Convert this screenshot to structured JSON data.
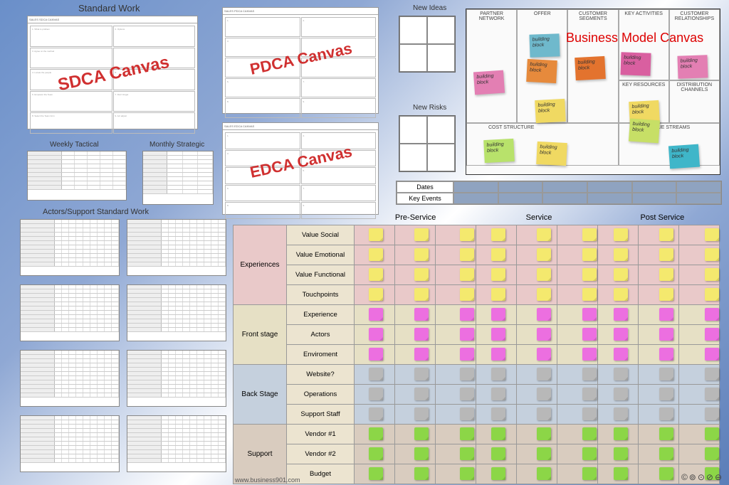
{
  "titles": {
    "standard_work": "Standard Work",
    "weekly_tactical": "Weekly Tactical",
    "monthly_strategic": "Monthly Strategic",
    "actors_support": "Actors/Support Standard Work",
    "new_ideas": "New Ideas",
    "new_risks": "New Risks",
    "bmc": "Business Model Canvas"
  },
  "canvases": {
    "sdca": "SDCA Canvas",
    "pdca": "PDCA Canvas",
    "edca": "EDCA Canvas"
  },
  "bmc": {
    "headers": [
      "PARTNER NETWORK",
      "KEY ACTIVITIES",
      "OFFER",
      "CUSTOMER RELATIONSHIPS",
      "CUSTOMER SEGMENTS",
      "KEY RESOURCES",
      "DISTRIBUTION CHANNELS",
      "COST STRUCTURE",
      "REVENUE STREAMS"
    ],
    "sticky_text": "building block",
    "colors": {
      "blue": "#6fb9cc",
      "orange": "#e68a3c",
      "orange2": "#e3732e",
      "pink": "#d95fa0",
      "pink2": "#e37fb3",
      "yellow": "#f0d962",
      "green": "#c7df66",
      "teal": "#3fb6c9",
      "lime": "#b8e26b"
    }
  },
  "kvbar": {
    "rows": [
      "Dates",
      "Key Events"
    ]
  },
  "service_matrix": {
    "phase_headers": [
      "Pre-Service",
      "Service",
      "Post Service"
    ],
    "sections": [
      {
        "name": "Experiences",
        "bg": "#e9c9c9",
        "rows": [
          {
            "label": "Value Social",
            "color": "#f4e96e"
          },
          {
            "label": "Value Emotional",
            "color": "#f4e96e"
          },
          {
            "label": "Value Functional",
            "color": "#f4e96e"
          },
          {
            "label": "Touchpoints",
            "color": "#f4e96e"
          }
        ]
      },
      {
        "name": "Front stage",
        "bg": "#e6e0c5",
        "rows": [
          {
            "label": "Experience",
            "color": "#ec6fe0"
          },
          {
            "label": "Actors",
            "color": "#ec6fe0"
          },
          {
            "label": "Enviroment",
            "color": "#ec6fe0"
          }
        ]
      },
      {
        "name": "Back Stage",
        "bg": "#c5d0dd",
        "rows": [
          {
            "label": "Website?",
            "color": "#b8b8b8"
          },
          {
            "label": "Operations",
            "color": "#b8b8b8"
          },
          {
            "label": "Support Staff",
            "color": "#b8b8b8"
          }
        ]
      },
      {
        "name": "Support",
        "bg": "#d9ccbf",
        "rows": [
          {
            "label": "Vendor #1",
            "color": "#8cd647"
          },
          {
            "label": "Vendor #2",
            "color": "#8cd647"
          },
          {
            "label": "Budget",
            "color": "#8cd647"
          }
        ]
      }
    ],
    "cols": 9,
    "label_col_bg": "#ece4d0"
  },
  "footer": "www.business901.com",
  "cc_icons": "©⊚⊙⊘⊖"
}
